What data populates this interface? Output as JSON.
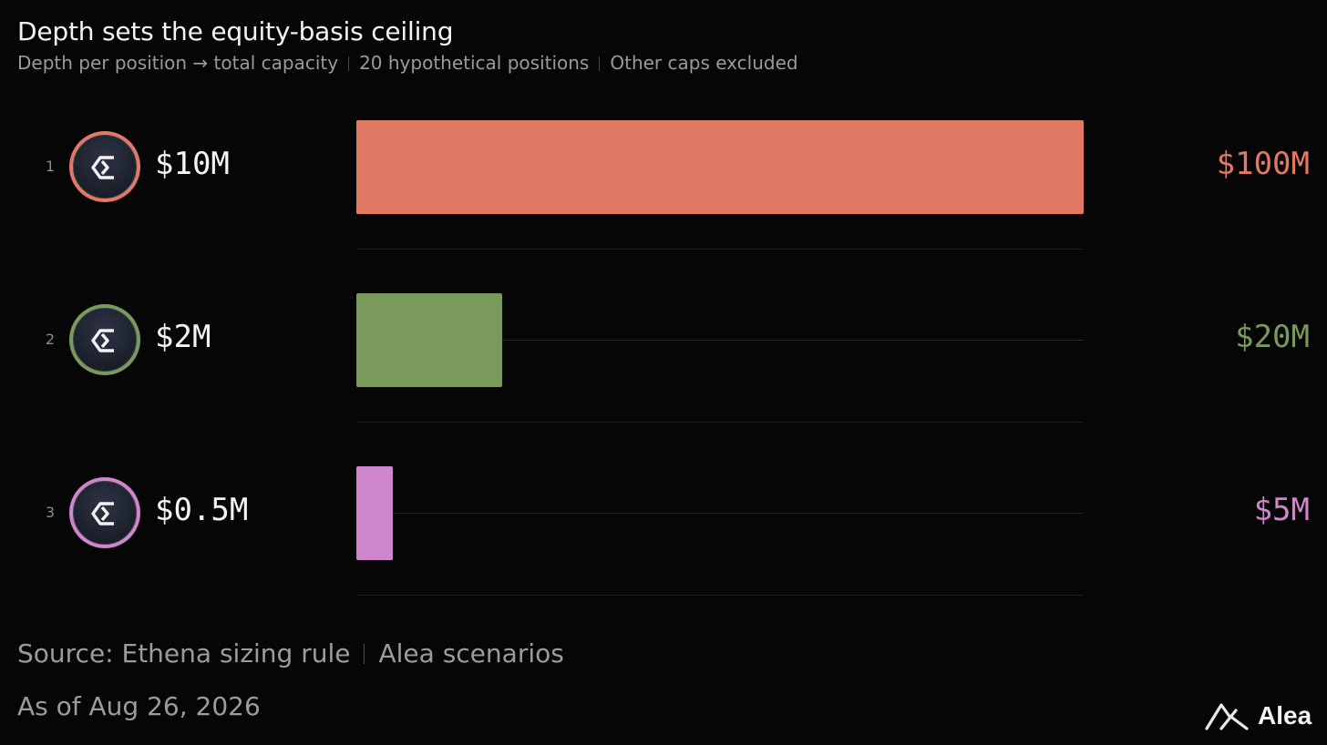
{
  "header": {
    "title": "Depth sets the equity-basis ceiling",
    "subtitle_parts": [
      "Depth per position → total capacity",
      "20 hypothetical positions",
      "Other caps excluded"
    ]
  },
  "footer": {
    "source_parts": [
      "Source: Ethena sizing rule",
      "Alea scenarios"
    ],
    "as_of": "As of Aug 26, 2026",
    "brand": "Alea"
  },
  "chart_data": {
    "type": "bar",
    "orientation": "horizontal",
    "xlim": [
      0,
      100
    ],
    "unit": "$M",
    "rows": [
      {
        "rank": "1",
        "depth_label": "$10M",
        "depth": 10,
        "capacity_label": "$100M",
        "capacity": 100,
        "color": "#e07a64",
        "icon": "ethena-icon"
      },
      {
        "rank": "2",
        "depth_label": "$2M",
        "depth": 2,
        "capacity_label": "$20M",
        "capacity": 20,
        "color": "#7a9a5c",
        "icon": "ethena-icon"
      },
      {
        "rank": "3",
        "depth_label": "$0.5M",
        "depth": 0.5,
        "capacity_label": "$5M",
        "capacity": 5,
        "color": "#cf86cb",
        "icon": "ethena-icon"
      }
    ]
  }
}
